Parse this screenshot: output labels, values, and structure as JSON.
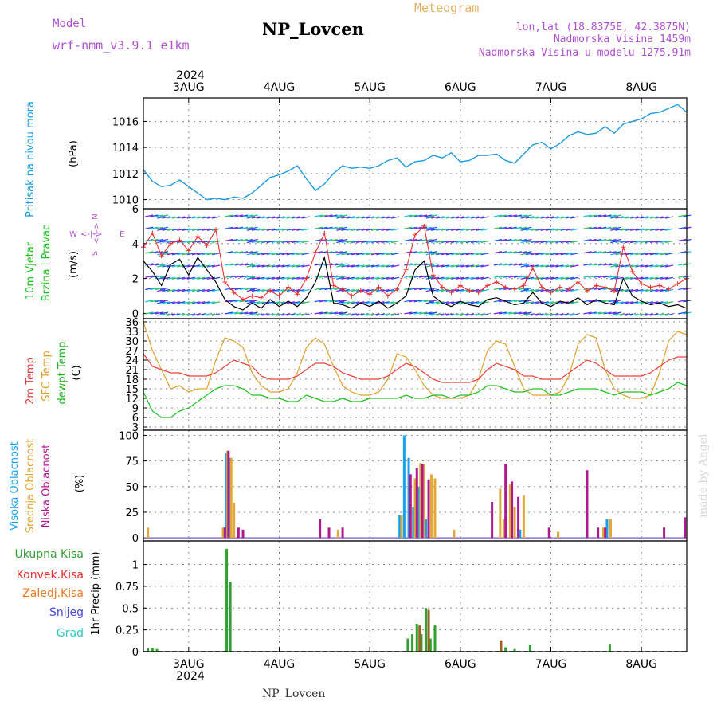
{
  "header": {
    "model_label": "Model",
    "model_name": "wrf-nmm_v3.9.1 e1km",
    "title": "NP_Lovcen",
    "meteogram_label": "Meteogram",
    "lonlat": "lon,lat (18.8375E, 42.3875N)",
    "altitude": "Nadmorska Visina 1459m",
    "model_altitude": "Nadmorska Visina u modelu 1275.91m",
    "footer_title": "NP_Lovcen",
    "watermark": "made by Angel"
  },
  "time_axis": {
    "year": "2024",
    "days": [
      "3AUG",
      "4AUG",
      "5AUG",
      "6AUG",
      "7AUG",
      "8AUG"
    ],
    "start_day": 2.5,
    "end_day": 8.5
  },
  "colors": {
    "pressure": "#1e9be0",
    "wind_speed": "#000000",
    "wind_gust": "#e83030",
    "t2m": "#e8403a",
    "tsfc": "#e0a030",
    "dewpt": "#20c020",
    "cloud_high": "#18a0e8",
    "cloud_mid": "#e0a838",
    "cloud_low": "#b01890",
    "rain_total": "#30a030",
    "rain_conv": "#e83030",
    "rain_frz": "#f07820",
    "snow": "#4848e0",
    "hail": "#30c8c0"
  },
  "chart_data": [
    {
      "type": "line",
      "panel": "pressure",
      "ylabel_main": "Pritisak na nivou mora",
      "ylabel_unit": "(hPa)",
      "ylim": [
        1009.3,
        1017.8
      ],
      "yticks": [
        "1010",
        "1012",
        "1014",
        "1016"
      ],
      "series": [
        {
          "x": [
            2.5,
            2.6,
            2.7,
            2.8,
            2.9,
            3.0,
            3.1,
            3.2,
            3.3,
            3.4,
            3.5,
            3.6,
            3.7,
            3.8,
            3.9,
            4.0,
            4.1,
            4.2,
            4.3,
            4.4,
            4.5,
            4.6,
            4.7,
            4.8,
            4.9,
            5.0,
            5.1,
            5.2,
            5.3,
            5.4,
            5.5,
            5.6,
            5.7,
            5.8,
            5.9,
            6.0,
            6.1,
            6.2,
            6.3,
            6.4,
            6.5,
            6.6,
            6.7,
            6.8,
            6.9,
            7.0,
            7.1,
            7.2,
            7.3,
            7.4,
            7.5,
            7.6,
            7.7,
            7.8,
            7.9,
            8.0,
            8.1,
            8.2,
            8.3,
            8.4,
            8.5
          ],
          "values": [
            1012.3,
            1011.4,
            1011.0,
            1011.1,
            1011.5,
            1011.0,
            1010.5,
            1010.0,
            1010.1,
            1010.0,
            1010.2,
            1010.1,
            1010.5,
            1011.1,
            1011.7,
            1011.9,
            1012.2,
            1012.6,
            1011.6,
            1010.7,
            1011.2,
            1012.0,
            1012.6,
            1012.4,
            1012.5,
            1012.4,
            1012.6,
            1013.0,
            1013.2,
            1012.5,
            1012.9,
            1013.0,
            1013.4,
            1013.2,
            1013.6,
            1012.9,
            1013.0,
            1013.4,
            1013.4,
            1013.5,
            1013.0,
            1012.8,
            1013.5,
            1014.2,
            1014.4,
            1013.9,
            1014.3,
            1014.9,
            1015.2,
            1015.0,
            1015.1,
            1015.6,
            1015.1,
            1015.8,
            1016.0,
            1016.2,
            1016.6,
            1016.7,
            1017.0,
            1017.3,
            1016.7
          ]
        }
      ]
    },
    {
      "type": "line",
      "panel": "wind",
      "ylabel_main_1": "10m Vjetar",
      "ylabel_main_2": "Brzina i Pravac",
      "ylabel_unit": "(m/s)",
      "compass": {
        "n": "N",
        "s": "S",
        "w": "W",
        "e": "E",
        "arrow": "<-|->"
      },
      "ylim": [
        -0.3,
        6.0
      ],
      "yticks": [
        "0",
        "2",
        "4",
        "6"
      ],
      "series": [
        {
          "name": "speed",
          "x": [
            2.5,
            2.6,
            2.7,
            2.8,
            2.9,
            3.0,
            3.1,
            3.2,
            3.3,
            3.4,
            3.5,
            3.6,
            3.7,
            3.8,
            3.9,
            4.0,
            4.1,
            4.2,
            4.3,
            4.4,
            4.5,
            4.6,
            4.7,
            4.8,
            4.9,
            5.0,
            5.1,
            5.2,
            5.3,
            5.4,
            5.5,
            5.6,
            5.7,
            5.8,
            5.9,
            6.0,
            6.1,
            6.2,
            6.3,
            6.4,
            6.5,
            6.6,
            6.7,
            6.8,
            6.9,
            7.0,
            7.1,
            7.2,
            7.3,
            7.4,
            7.5,
            7.6,
            7.7,
            7.8,
            7.9,
            8.0,
            8.1,
            8.2,
            8.3,
            8.4,
            8.5
          ],
          "values": [
            3.0,
            2.4,
            1.6,
            2.8,
            3.1,
            2.2,
            3.2,
            2.5,
            1.8,
            0.8,
            0.4,
            0.2,
            0.6,
            0.3,
            0.8,
            0.4,
            0.7,
            0.4,
            0.9,
            1.8,
            3.2,
            0.6,
            0.5,
            0.3,
            0.6,
            0.4,
            0.7,
            0.3,
            0.6,
            1.0,
            2.5,
            3.0,
            1.0,
            0.6,
            0.4,
            0.7,
            0.5,
            0.4,
            0.8,
            0.9,
            0.7,
            0.5,
            0.6,
            1.2,
            0.6,
            0.4,
            0.7,
            0.6,
            0.9,
            0.5,
            0.8,
            0.6,
            0.5,
            2.0,
            1.0,
            0.7,
            0.5,
            0.6,
            0.4,
            0.5,
            0.3
          ]
        },
        {
          "name": "gust",
          "x": [
            2.5,
            2.6,
            2.7,
            2.8,
            2.9,
            3.0,
            3.1,
            3.2,
            3.3,
            3.4,
            3.5,
            3.6,
            3.7,
            3.8,
            3.9,
            4.0,
            4.1,
            4.2,
            4.3,
            4.4,
            4.5,
            4.6,
            4.7,
            4.8,
            4.9,
            5.0,
            5.1,
            5.2,
            5.3,
            5.4,
            5.5,
            5.6,
            5.7,
            5.8,
            5.9,
            6.0,
            6.1,
            6.2,
            6.3,
            6.4,
            6.5,
            6.6,
            6.7,
            6.8,
            6.9,
            7.0,
            7.1,
            7.2,
            7.3,
            7.4,
            7.5,
            7.6,
            7.7,
            7.8,
            7.9,
            8.0,
            8.1,
            8.2,
            8.3,
            8.4,
            8.5
          ],
          "values": [
            3.8,
            4.6,
            3.3,
            4.0,
            4.2,
            3.6,
            4.4,
            3.9,
            4.8,
            1.8,
            1.2,
            0.8,
            1.0,
            0.9,
            1.3,
            1.0,
            1.5,
            1.1,
            2.0,
            3.5,
            4.6,
            1.6,
            1.4,
            1.0,
            1.3,
            1.1,
            1.5,
            1.0,
            1.4,
            2.5,
            4.5,
            5.0,
            2.2,
            1.5,
            1.2,
            1.6,
            1.3,
            1.2,
            1.6,
            1.8,
            1.5,
            1.4,
            1.6,
            2.6,
            1.5,
            1.2,
            1.5,
            1.4,
            1.8,
            1.3,
            1.6,
            1.5,
            1.3,
            3.8,
            2.4,
            1.7,
            1.5,
            1.6,
            1.4,
            1.7,
            2.0
          ]
        }
      ]
    },
    {
      "type": "line",
      "panel": "temperature",
      "ylabel_main_1": "2m Temp",
      "ylabel_main_2": "SFC Temp",
      "ylabel_main_3": "dewpt Temp",
      "ylabel_unit": "(C)",
      "ylim": [
        2,
        37
      ],
      "yticks": [
        "3",
        "6",
        "9",
        "12",
        "15",
        "18",
        "21",
        "24",
        "27",
        "30",
        "33",
        "36"
      ],
      "series": [
        {
          "name": "2m",
          "x": [
            2.5,
            2.6,
            2.7,
            2.8,
            2.9,
            3.0,
            3.1,
            3.2,
            3.3,
            3.4,
            3.5,
            3.6,
            3.7,
            3.8,
            3.9,
            4.0,
            4.1,
            4.2,
            4.3,
            4.4,
            4.5,
            4.6,
            4.7,
            4.8,
            4.9,
            5.0,
            5.1,
            5.2,
            5.3,
            5.4,
            5.5,
            5.6,
            5.7,
            5.8,
            5.9,
            6.0,
            6.1,
            6.2,
            6.3,
            6.4,
            6.5,
            6.6,
            6.7,
            6.8,
            6.9,
            7.0,
            7.1,
            7.2,
            7.3,
            7.4,
            7.5,
            7.6,
            7.7,
            7.8,
            7.9,
            8.0,
            8.1,
            8.2,
            8.3,
            8.4,
            8.5
          ],
          "values": [
            26,
            22,
            21,
            20,
            20,
            19,
            19,
            19,
            20,
            22,
            24,
            23,
            22,
            19,
            18,
            18,
            18,
            19,
            21,
            23,
            23,
            22,
            20,
            19,
            18,
            18,
            18,
            19,
            21,
            23,
            22,
            20,
            18,
            17,
            17,
            17,
            17,
            18,
            21,
            23,
            22,
            21,
            19,
            19,
            18,
            18,
            18,
            20,
            22,
            24,
            23,
            21,
            19,
            19,
            19,
            19,
            20,
            22,
            24,
            25,
            25
          ]
        },
        {
          "name": "sfc",
          "x": [
            2.5,
            2.6,
            2.7,
            2.8,
            2.9,
            3.0,
            3.1,
            3.2,
            3.3,
            3.4,
            3.5,
            3.6,
            3.7,
            3.8,
            3.9,
            4.0,
            4.1,
            4.2,
            4.3,
            4.4,
            4.5,
            4.6,
            4.7,
            4.8,
            4.9,
            5.0,
            5.1,
            5.2,
            5.3,
            5.4,
            5.5,
            5.6,
            5.7,
            5.8,
            5.9,
            6.0,
            6.1,
            6.2,
            6.3,
            6.4,
            6.5,
            6.6,
            6.7,
            6.8,
            6.9,
            7.0,
            7.1,
            7.2,
            7.3,
            7.4,
            7.5,
            7.6,
            7.7,
            7.8,
            7.9,
            8.0,
            8.1,
            8.2,
            8.3,
            8.4,
            8.5
          ],
          "values": [
            36,
            27,
            21,
            15,
            16,
            14,
            15,
            15,
            24,
            31,
            30,
            28,
            20,
            16,
            14,
            14,
            15,
            20,
            28,
            31,
            29,
            22,
            16,
            14,
            13,
            13,
            14,
            18,
            26,
            25,
            21,
            16,
            13,
            12,
            12,
            12,
            13,
            18,
            27,
            30,
            29,
            22,
            15,
            13,
            13,
            13,
            14,
            19,
            29,
            32,
            31,
            21,
            15,
            13,
            12,
            12,
            13,
            20,
            30,
            33,
            32
          ]
        },
        {
          "name": "dew",
          "x": [
            2.5,
            2.6,
            2.7,
            2.8,
            2.9,
            3.0,
            3.1,
            3.2,
            3.3,
            3.4,
            3.5,
            3.6,
            3.7,
            3.8,
            3.9,
            4.0,
            4.1,
            4.2,
            4.3,
            4.4,
            4.5,
            4.6,
            4.7,
            4.8,
            4.9,
            5.0,
            5.1,
            5.2,
            5.3,
            5.4,
            5.5,
            5.6,
            5.7,
            5.8,
            5.9,
            6.0,
            6.1,
            6.2,
            6.3,
            6.4,
            6.5,
            6.6,
            6.7,
            6.8,
            6.9,
            7.0,
            7.1,
            7.2,
            7.3,
            7.4,
            7.5,
            7.6,
            7.7,
            7.8,
            7.9,
            8.0,
            8.1,
            8.2,
            8.3,
            8.4,
            8.5
          ],
          "values": [
            14,
            8,
            6,
            6,
            8,
            9,
            11,
            13,
            15,
            16,
            16,
            15,
            13,
            13,
            12,
            12,
            11,
            11,
            13,
            12,
            11,
            11,
            12,
            11,
            11,
            12,
            12,
            12,
            12,
            13,
            12,
            12,
            13,
            13,
            12,
            13,
            13,
            14,
            16,
            16,
            15,
            14,
            14,
            15,
            15,
            13,
            13,
            14,
            15,
            15,
            15,
            14,
            13,
            14,
            14,
            14,
            13,
            14,
            15,
            17,
            16
          ]
        }
      ]
    },
    {
      "type": "bar",
      "panel": "clouds",
      "ylabel_main_1": "Visoka Oblacnost",
      "ylabel_main_2": "Srednja Oblacnost",
      "ylabel_main_3": "Niska Oblacnost",
      "ylabel_unit": "(%)",
      "ylim": [
        -3,
        105
      ],
      "yticks": [
        "0",
        "25",
        "50",
        "75",
        "100"
      ],
      "series": [
        {
          "name": "high",
          "x": [
            3.42,
            3.46,
            5.33,
            5.38,
            5.43,
            5.48,
            5.54,
            5.62,
            6.66,
            7.62
          ],
          "values": [
            83,
            78,
            22,
            100,
            78,
            30,
            50,
            18,
            8,
            18
          ]
        },
        {
          "name": "mid",
          "x": [
            2.55,
            3.38,
            3.43,
            3.47,
            3.5,
            4.65,
            5.35,
            5.5,
            5.56,
            5.6,
            5.68,
            5.72,
            5.93,
            6.44,
            6.48,
            6.55,
            6.6,
            6.7,
            7.08,
            7.58,
            7.66
          ],
          "values": [
            10,
            10,
            85,
            78,
            34,
            8,
            22,
            58,
            73,
            72,
            62,
            58,
            8,
            48,
            18,
            52,
            30,
            42,
            6,
            10,
            18
          ]
        },
        {
          "name": "low",
          "x": [
            3.4,
            3.44,
            3.55,
            3.6,
            4.45,
            4.55,
            4.7,
            5.45,
            5.52,
            5.58,
            5.65,
            6.35,
            6.5,
            6.57,
            6.64,
            6.98,
            7.4,
            7.52,
            7.6,
            8.25,
            8.48
          ],
          "values": [
            10,
            85,
            10,
            8,
            18,
            10,
            10,
            62,
            68,
            72,
            57,
            35,
            72,
            55,
            40,
            10,
            66,
            10,
            10,
            10,
            20
          ]
        }
      ]
    },
    {
      "type": "bar",
      "panel": "precip",
      "ylabel_unit": "1hr Precip (mm)",
      "legend": [
        "Ukupna Kisa",
        "Konvek.Kisa",
        "Zaledj.Kisa",
        "Snijeg",
        "Grad"
      ],
      "ylim": [
        0,
        1.27
      ],
      "yticks": [
        "0",
        "0.25",
        "0.5",
        "0.75",
        "1"
      ],
      "series": [
        {
          "name": "total",
          "x": [
            2.55,
            2.6,
            2.65,
            3.42,
            3.46,
            5.42,
            5.47,
            5.52,
            5.57,
            5.62,
            5.67,
            5.72,
            6.5,
            6.6,
            6.77,
            7.65
          ],
          "values": [
            0.04,
            0.04,
            0.03,
            1.18,
            0.8,
            0.15,
            0.2,
            0.32,
            0.2,
            0.5,
            0.15,
            0.3,
            0.05,
            0.03,
            0.08,
            0.09
          ]
        },
        {
          "name": "conv",
          "x": [
            5.55,
            5.65,
            6.45
          ],
          "values": [
            0.3,
            0.48,
            0.13
          ]
        }
      ]
    }
  ]
}
